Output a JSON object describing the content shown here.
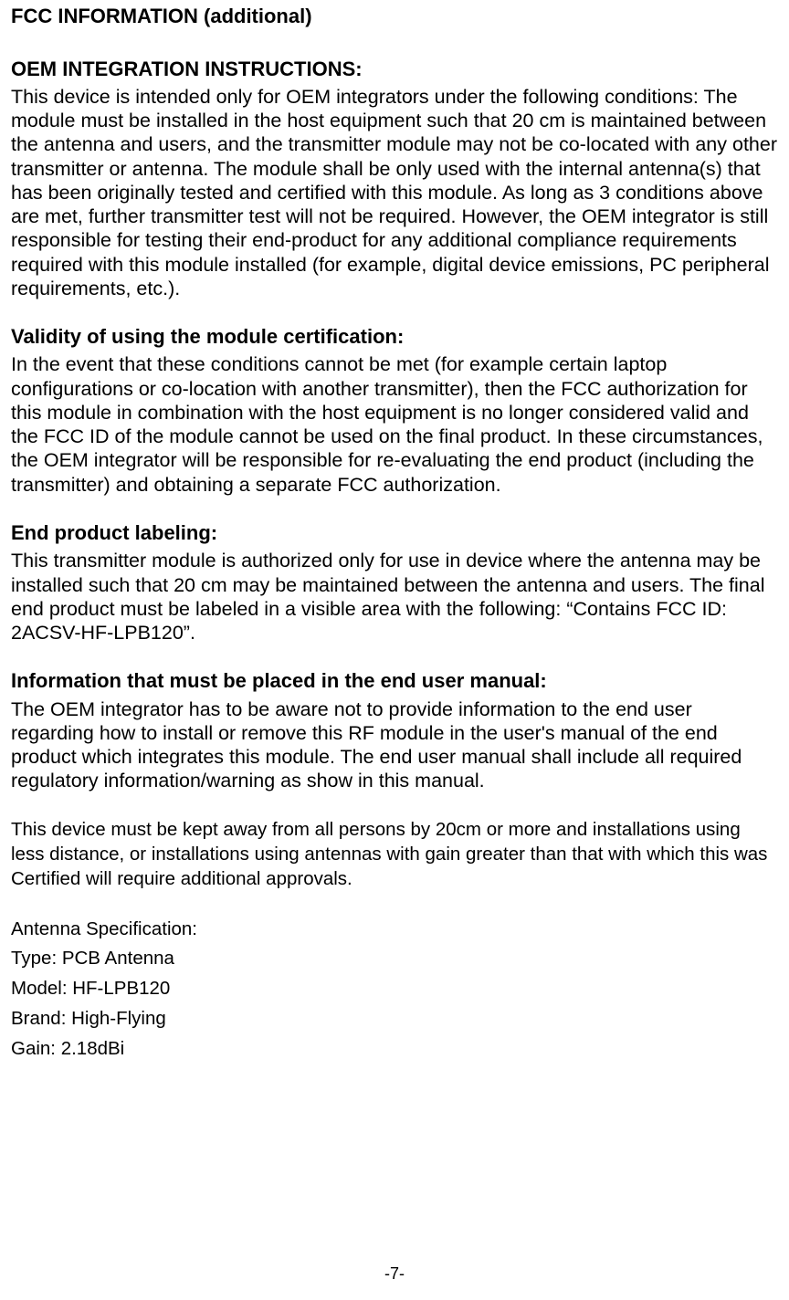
{
  "title": "FCC INFORMATION (additional)",
  "sections": {
    "oem": {
      "heading": "OEM INTEGRATION INSTRUCTIONS:",
      "body": "This device is intended only for OEM integrators under the following conditions: The module must be installed in the host equipment such that 20 cm is maintained between the antenna and users, and the transmitter module may not be co-located with any other transmitter or antenna. The module shall be only used with the internal antenna(s) that has been originally tested and certified with this module. As long as 3 conditions above are met, further transmitter test will not be required. However, the OEM integrator is still responsible for testing their end-product for any additional compliance requirements required with this module installed (for example, digital device emissions, PC peripheral requirements, etc.)."
    },
    "validity": {
      "heading": "Validity of using the module certification:",
      "body": "In the event that these conditions cannot be met (for example certain laptop configurations or co-location with another transmitter), then the FCC authorization for this module in combination with the host equipment is no longer considered valid and the FCC ID of the module cannot be used on the final product. In these circumstances, the OEM integrator will be responsible for re-evaluating the end product (including the transmitter) and obtaining a separate FCC authorization."
    },
    "labeling": {
      "heading": "End product labeling:",
      "body": "This transmitter module is authorized only for use in device where the antenna may be installed such that 20 cm may be maintained between the antenna and users. The final end product must be labeled in a visible area with the following: “Contains FCC ID: 2ACSV-HF-LPB120”."
    },
    "manual": {
      "heading": "Information that must be placed in the end user manual:",
      "body": "The OEM integrator has to be aware not to provide information to the end user regarding how to install or remove this RF module in the user's manual of the end product which integrates this module. The end user manual shall include all required regulatory information/warning as show in this manual."
    },
    "distance_warning": "This device must be kept away from all persons by 20cm or more and installations using less distance, or installations using antennas with gain greater than that with which this was Certified will require additional approvals.",
    "antenna_spec": {
      "title": "Antenna Specification:",
      "type": "Type: PCB Antenna",
      "model": "Model: HF-LPB120",
      "brand": "Brand: High-Flying",
      "gain": "Gain: 2.18dBi"
    }
  },
  "footer": "-7-"
}
